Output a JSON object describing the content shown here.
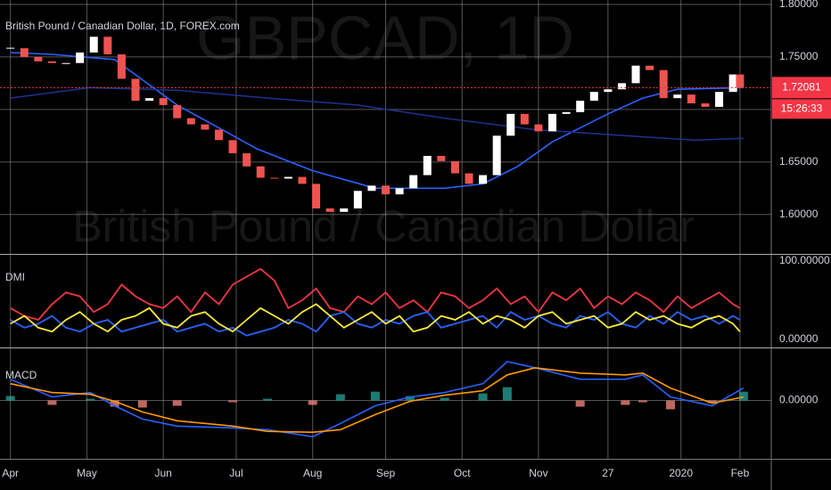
{
  "chart_data": [
    {
      "type": "candlestick",
      "title": "British Pound / Canadian Dollar, 1D, FOREX.com",
      "watermark": "GBPCAD, 1D",
      "watermark_subtitle": "British Pound / Canadian Dollar",
      "x": [
        0,
        4,
        8,
        12,
        16,
        20,
        24,
        28,
        32,
        36,
        40,
        44,
        48,
        52,
        56,
        60,
        64,
        68,
        72,
        76,
        80,
        84,
        88,
        92,
        96,
        100,
        104,
        108,
        112,
        116,
        120,
        124,
        128,
        132,
        136,
        140,
        144,
        148,
        152,
        156,
        160,
        164,
        168,
        172,
        176,
        180,
        184,
        188,
        192,
        196,
        200,
        204,
        208,
        210
      ],
      "close": [
        1.7583,
        1.75,
        1.7458,
        1.7442,
        1.7442,
        1.7542,
        1.7692,
        1.7525,
        1.7292,
        1.7083,
        1.7108,
        1.7042,
        1.6917,
        1.6858,
        1.6808,
        1.6708,
        1.6583,
        1.6458,
        1.635,
        1.6342,
        1.6358,
        1.6292,
        1.6058,
        1.6025,
        1.6058,
        1.6225,
        1.6275,
        1.6192,
        1.625,
        1.6375,
        1.6558,
        1.6508,
        1.6392,
        1.6292,
        1.6375,
        1.675,
        1.6958,
        1.6858,
        1.6792,
        1.6958,
        1.6975,
        1.7083,
        1.7167,
        1.7192,
        1.725,
        1.7417,
        1.7375,
        1.7108,
        1.7142,
        1.7058,
        1.7025,
        1.7167,
        1.7333,
        1.72081
      ],
      "up_color": "#ffffff",
      "down_color": "#ef5350",
      "overlays": [
        {
          "color": "#2962ff",
          "x": [
            0,
            12,
            30,
            48,
            71,
            87,
            105,
            125,
            136,
            146,
            156,
            172,
            182,
            192,
            211
          ],
          "values": [
            1.7542,
            1.7525,
            1.7475,
            1.7042,
            1.6625,
            1.6417,
            1.625,
            1.625,
            1.6292,
            1.6458,
            1.6692,
            1.6958,
            1.7108,
            1.7192,
            1.7208
          ]
        },
        {
          "color": "#1c2f8a",
          "x": [
            0,
            23,
            48,
            74,
            100,
            125,
            151,
            177,
            197,
            211
          ],
          "values": [
            1.7108,
            1.7208,
            1.7183,
            1.7108,
            1.7042,
            1.6917,
            1.6808,
            1.675,
            1.6708,
            1.6725
          ]
        }
      ],
      "last_price": 1.72081,
      "price_line_color": "#f23645",
      "countdown": "15:26:33",
      "xlim": [
        -3,
        219
      ],
      "xticks": [
        {
          "value": 0,
          "label": "Apr"
        },
        {
          "value": 22,
          "label": "May"
        },
        {
          "value": 44,
          "label": "Jun"
        },
        {
          "value": 65,
          "label": "Jul"
        },
        {
          "value": 87,
          "label": "Aug"
        },
        {
          "value": 108,
          "label": "Sep"
        },
        {
          "value": 130,
          "label": "Oct"
        },
        {
          "value": 152,
          "label": "Nov"
        },
        {
          "value": 172,
          "label": "27"
        },
        {
          "value": 193,
          "label": "2020"
        },
        {
          "value": 210,
          "label": "Feb"
        }
      ],
      "ylim": [
        1.5625,
        1.8042
      ],
      "yticks": [
        {
          "value": 1.8,
          "label": "1.80000"
        },
        {
          "value": 1.75,
          "label": "1.75000"
        },
        {
          "value": 1.7,
          "label": "1.70000"
        },
        {
          "value": 1.65,
          "label": "1.65000"
        },
        {
          "value": 1.6,
          "label": "1.60000"
        }
      ],
      "grid": true
    },
    {
      "type": "line",
      "title": "DMI",
      "x": [
        0,
        4,
        8,
        12,
        16,
        20,
        24,
        28,
        32,
        36,
        40,
        44,
        48,
        52,
        56,
        60,
        64,
        68,
        72,
        76,
        80,
        84,
        88,
        92,
        96,
        100,
        104,
        108,
        112,
        116,
        120,
        124,
        128,
        132,
        136,
        140,
        144,
        148,
        152,
        156,
        160,
        164,
        168,
        172,
        176,
        180,
        184,
        188,
        192,
        196,
        200,
        204,
        208,
        210
      ],
      "series": [
        {
          "color": "#f23645",
          "values": [
            40,
            30,
            25,
            45,
            60,
            55,
            35,
            45,
            70,
            55,
            45,
            40,
            55,
            35,
            60,
            45,
            70,
            80,
            90,
            75,
            40,
            50,
            65,
            40,
            35,
            55,
            45,
            60,
            40,
            50,
            35,
            60,
            55,
            40,
            50,
            65,
            45,
            55,
            35,
            60,
            50,
            65,
            40,
            55,
            45,
            60,
            50,
            35,
            55,
            40,
            50,
            60,
            45,
            40
          ]
        },
        {
          "color": "#2962ff",
          "values": [
            25,
            15,
            20,
            30,
            15,
            10,
            20,
            25,
            10,
            15,
            20,
            25,
            10,
            15,
            20,
            10,
            15,
            5,
            10,
            15,
            25,
            20,
            10,
            30,
            35,
            20,
            15,
            25,
            20,
            30,
            35,
            15,
            20,
            25,
            30,
            15,
            35,
            25,
            30,
            20,
            15,
            30,
            25,
            35,
            20,
            15,
            30,
            20,
            35,
            25,
            30,
            20,
            30,
            25
          ]
        },
        {
          "color": "#ffeb3b",
          "values": [
            20,
            30,
            15,
            10,
            25,
            35,
            20,
            10,
            25,
            30,
            40,
            20,
            15,
            30,
            35,
            20,
            10,
            25,
            40,
            30,
            20,
            35,
            45,
            30,
            15,
            25,
            35,
            20,
            30,
            10,
            15,
            30,
            25,
            35,
            20,
            30,
            25,
            15,
            30,
            35,
            20,
            25,
            30,
            15,
            20,
            35,
            25,
            30,
            20,
            15,
            25,
            30,
            20,
            10
          ]
        }
      ],
      "ylim": [
        -10.2,
        107.9
      ],
      "yticks": [
        {
          "value": 100,
          "label": "100.00000"
        },
        {
          "value": 0,
          "label": "0.00000"
        }
      ],
      "grid": false
    },
    {
      "type": "macd",
      "title": "MACD",
      "x": [
        0,
        12,
        23,
        30,
        38,
        48,
        64,
        74,
        87,
        95,
        105,
        115,
        125,
        136,
        143,
        151,
        164,
        177,
        182,
        190,
        202,
        211
      ],
      "histogram": [
        0.001,
        -0.001,
        0.0004,
        -0.0014,
        -0.0016,
        -0.0012,
        -0.0004,
        0.0004,
        -0.001,
        0.0014,
        0.002,
        0.001,
        0.0006,
        0.0016,
        0.003,
        0.0,
        -0.0014,
        -0.001,
        -0.0004,
        -0.002,
        -0.0006,
        0.002
      ],
      "hist_colors": [
        "#26a69a",
        "#ff8a80"
      ],
      "series": [
        {
          "color": "#2962ff",
          "values": [
            0.0048,
            0.0008,
            0.0018,
            -0.0012,
            -0.0042,
            -0.0058,
            -0.0062,
            -0.0066,
            -0.0082,
            -0.0052,
            -0.0012,
            0.0008,
            0.0018,
            0.0038,
            0.0088,
            0.0074,
            0.0048,
            0.0048,
            0.0058,
            0.0008,
            -0.0012,
            0.0028
          ]
        },
        {
          "color": "#ff9800",
          "values": [
            0.0038,
            0.0018,
            0.0014,
            -0.0002,
            -0.0026,
            -0.0046,
            -0.0058,
            -0.007,
            -0.0072,
            -0.0066,
            -0.0032,
            -0.0002,
            0.0012,
            0.0022,
            0.0058,
            0.0074,
            0.0062,
            0.0058,
            0.0062,
            0.0028,
            -0.0006,
            0.0008
          ]
        }
      ],
      "ylim": [
        -0.0132,
        0.0118
      ],
      "yticks": [
        {
          "value": 0,
          "label": "0.00000"
        }
      ],
      "grid": true
    }
  ]
}
